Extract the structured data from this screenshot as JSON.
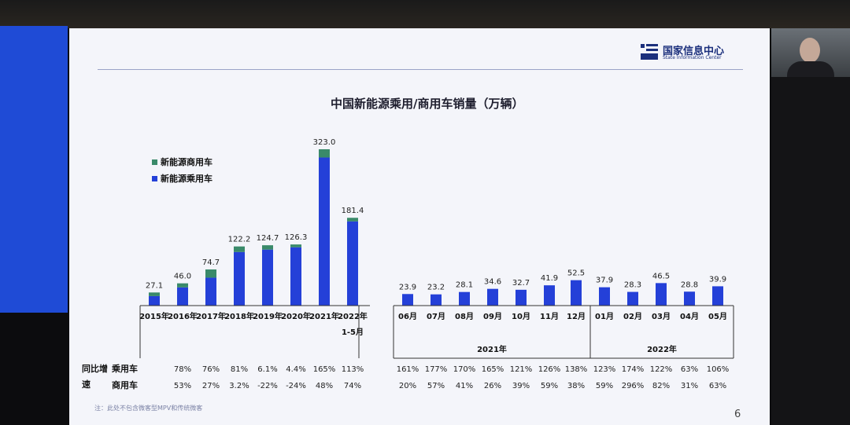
{
  "logo": {
    "name_cn": "国家信息中心",
    "name_en": "State Information Center"
  },
  "page_number": "6",
  "note": "注：此处不包含微客型MPV和传统微客",
  "growth_header": "同比增速",
  "chart_data": {
    "type": "bar",
    "title": "中国新能源乘用/商用车销量（万辆）",
    "stacked": true,
    "legend": [
      {
        "name": "新能源商用车",
        "color": "#3a8a6a"
      },
      {
        "name": "新能源乘用车",
        "color": "#2440d8"
      }
    ],
    "groups": [
      {
        "label": "",
        "categories": [
          "2015年",
          "2016年",
          "2017年",
          "2018年",
          "2019年",
          "2020年",
          "2021年",
          "2022年 1-5月"
        ],
        "totals": [
          27.1,
          46.0,
          74.7,
          122.2,
          124.7,
          126.3,
          323.0,
          181.4
        ],
        "commercial": [
          7.5,
          8.4,
          17.0,
          11.5,
          9.0,
          5.8,
          17.0,
          7.4
        ]
      },
      {
        "label": "2021年",
        "categories": [
          "06月",
          "07月",
          "08月",
          "09月",
          "10月",
          "11月",
          "12月"
        ],
        "totals": [
          23.9,
          23.2,
          28.1,
          34.6,
          32.7,
          41.9,
          52.5
        ],
        "commercial": [
          0,
          0,
          0,
          0,
          0,
          0,
          0
        ]
      },
      {
        "label": "2022年",
        "categories": [
          "01月",
          "02月",
          "03月",
          "04月",
          "05月"
        ],
        "totals": [
          37.9,
          28.3,
          46.5,
          28.8,
          39.9
        ],
        "commercial": [
          0,
          0,
          0,
          0,
          0
        ]
      }
    ],
    "growth_rows": [
      {
        "label": "乘用车",
        "values": [
          "",
          "78%",
          "76%",
          "81%",
          "6.1%",
          "4.4%",
          "165%",
          "113%",
          "161%",
          "177%",
          "170%",
          "165%",
          "121%",
          "126%",
          "138%",
          "123%",
          "174%",
          "122%",
          "63%",
          "106%"
        ]
      },
      {
        "label": "商用车",
        "values": [
          "",
          "53%",
          "27%",
          "3.2%",
          "-22%",
          "-24%",
          "48%",
          "74%",
          "20%",
          "57%",
          "41%",
          "26%",
          "39%",
          "59%",
          "38%",
          "59%",
          "296%",
          "82%",
          "31%",
          "63%"
        ]
      }
    ],
    "ylim": [
      0,
      340
    ]
  }
}
